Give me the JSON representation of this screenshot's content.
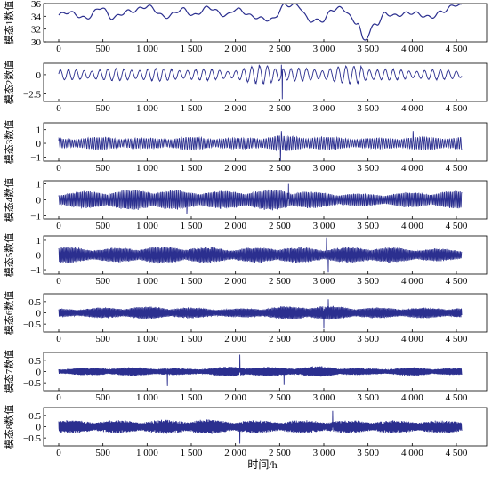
{
  "chart_data": {
    "type": "line",
    "xlabel": "时间/h",
    "x_range": [
      0,
      4600
    ],
    "x_ticks": [
      0,
      500,
      1000,
      1500,
      2000,
      2500,
      3000,
      3500,
      4000,
      4500
    ],
    "x_tick_labels": [
      "0",
      "500",
      "1 000",
      "1 500",
      "2 000",
      "2 500",
      "3 000",
      "3 500",
      "4 000",
      "4 500"
    ],
    "line_color": "#2b2f8f",
    "panels": [
      {
        "ylabel": "模态1数值",
        "ylim": [
          30,
          36
        ],
        "y_ticks": [
          30,
          32,
          34,
          36
        ],
        "y_tick_labels": [
          "30",
          "32",
          "34",
          "36"
        ],
        "approx_series": {
          "x": [
            0,
            100,
            300,
            480,
            600,
            800,
            1000,
            1200,
            1400,
            1530,
            1700,
            1900,
            2000,
            2200,
            2420,
            2560,
            2700,
            2850,
            2990,
            3100,
            3200,
            3380,
            3450,
            3600,
            3700,
            3800,
            4000,
            4200,
            4350,
            4500,
            4560
          ],
          "y": [
            34.2,
            34.5,
            33.8,
            35.4,
            33.6,
            34.9,
            35.5,
            33.9,
            35.2,
            34.0,
            35.4,
            34.2,
            35.0,
            34.0,
            33.5,
            35.6,
            35.8,
            33.4,
            33.2,
            35.0,
            35.4,
            33.0,
            30.2,
            32.8,
            34.6,
            34.2,
            34.4,
            34.0,
            34.8,
            35.7,
            35.6
          ]
        },
        "noise": 0.0,
        "freq": 0.0
      },
      {
        "ylabel": "模态2数值",
        "ylim": [
          -3.5,
          1.5
        ],
        "y_ticks": [
          0,
          -2.5
        ],
        "y_tick_labels": [
          "0",
          "−2.5"
        ],
        "amp_segments": [
          [
            0,
            0.7
          ],
          [
            500,
            0.8
          ],
          [
            1000,
            0.9
          ],
          [
            1500,
            0.8
          ],
          [
            2000,
            0.7
          ],
          [
            2400,
            1.6
          ],
          [
            2560,
            0.9
          ],
          [
            3000,
            0.9
          ],
          [
            3400,
            1.4
          ],
          [
            3600,
            0.8
          ],
          [
            4000,
            0.7
          ],
          [
            4600,
            0.7
          ]
        ],
        "spikes": [
          [
            2530,
            -3.2
          ],
          [
            2520,
            1.3
          ],
          [
            3420,
            1.2
          ]
        ],
        "freq": 0.07
      },
      {
        "ylabel": "模态3数值",
        "ylim": [
          -1.3,
          1.5
        ],
        "y_ticks": [
          -1,
          0,
          1
        ],
        "y_tick_labels": [
          "−1",
          "0",
          "1"
        ],
        "amp_segments": [
          [
            0,
            0.4
          ],
          [
            500,
            0.5
          ],
          [
            1000,
            0.4
          ],
          [
            1500,
            0.5
          ],
          [
            2000,
            0.4
          ],
          [
            2500,
            0.6
          ],
          [
            3000,
            0.5
          ],
          [
            3500,
            0.4
          ],
          [
            4000,
            0.5
          ],
          [
            4600,
            0.5
          ]
        ],
        "spikes": [
          [
            2510,
            -1.3
          ],
          [
            4010,
            0.9
          ],
          [
            2520,
            0.9
          ]
        ],
        "freq": 0.25
      },
      {
        "ylabel": "模态4数值",
        "ylim": [
          -1.2,
          1.2
        ],
        "y_ticks": [
          -1,
          0,
          1
        ],
        "y_tick_labels": [
          "−1",
          "0",
          "1"
        ],
        "amp_segments": [
          [
            0,
            0.5
          ],
          [
            500,
            0.6
          ],
          [
            1000,
            0.7
          ],
          [
            1500,
            0.6
          ],
          [
            2000,
            0.6
          ],
          [
            2500,
            0.7
          ],
          [
            3000,
            0.5
          ],
          [
            3500,
            0.4
          ],
          [
            4000,
            0.5
          ],
          [
            4600,
            0.6
          ]
        ],
        "spikes": [
          [
            1450,
            -0.9
          ],
          [
            2600,
            1.0
          ]
        ],
        "freq": 0.35
      },
      {
        "ylabel": "模态5数值",
        "ylim": [
          -1.3,
          1.3
        ],
        "y_ticks": [
          -1,
          0,
          1
        ],
        "y_tick_labels": [
          "−1",
          "0",
          "1"
        ],
        "amp_segments": [
          [
            0,
            0.6
          ],
          [
            500,
            0.5
          ],
          [
            1000,
            0.6
          ],
          [
            1500,
            0.6
          ],
          [
            2000,
            0.5
          ],
          [
            2500,
            0.6
          ],
          [
            3000,
            0.5
          ],
          [
            3500,
            0.6
          ],
          [
            4000,
            0.5
          ],
          [
            4600,
            0.4
          ]
        ],
        "spikes": [
          [
            3050,
            -1.2
          ],
          [
            3030,
            1.2
          ]
        ],
        "freq": 0.45
      },
      {
        "ylabel": "模态6数值",
        "ylim": [
          -0.85,
          0.85
        ],
        "y_ticks": [
          -0.5,
          0,
          0.5
        ],
        "y_tick_labels": [
          "−0.5",
          "0",
          "0.5"
        ],
        "amp_segments": [
          [
            0,
            0.2
          ],
          [
            500,
            0.25
          ],
          [
            1000,
            0.3
          ],
          [
            1500,
            0.25
          ],
          [
            2000,
            0.2
          ],
          [
            2500,
            0.3
          ],
          [
            3000,
            0.35
          ],
          [
            3500,
            0.25
          ],
          [
            4000,
            0.25
          ],
          [
            4600,
            0.25
          ]
        ],
        "spikes": [
          [
            3000,
            -0.7
          ],
          [
            3050,
            0.6
          ]
        ],
        "freq": 0.5
      },
      {
        "ylabel": "模态7数值",
        "ylim": [
          -0.85,
          0.85
        ],
        "y_ticks": [
          -0.5,
          0,
          0.5
        ],
        "y_tick_labels": [
          "−0.5",
          "0",
          "0.5"
        ],
        "amp_segments": [
          [
            0,
            0.15
          ],
          [
            500,
            0.2
          ],
          [
            1000,
            0.2
          ],
          [
            1500,
            0.15
          ],
          [
            2000,
            0.25
          ],
          [
            2500,
            0.2
          ],
          [
            3000,
            0.25
          ],
          [
            3500,
            0.15
          ],
          [
            4000,
            0.2
          ],
          [
            4600,
            0.15
          ]
        ],
        "spikes": [
          [
            2050,
            0.75
          ],
          [
            1230,
            -0.65
          ],
          [
            2550,
            -0.6
          ]
        ],
        "freq": 0.6
      },
      {
        "ylabel": "模态8数值",
        "ylim": [
          -0.85,
          0.85
        ],
        "y_ticks": [
          -0.5,
          0,
          0.5
        ],
        "y_tick_labels": [
          "−0.5",
          "0",
          "0.5"
        ],
        "amp_segments": [
          [
            0,
            0.3
          ],
          [
            500,
            0.3
          ],
          [
            1000,
            0.3
          ],
          [
            1500,
            0.35
          ],
          [
            2000,
            0.3
          ],
          [
            2500,
            0.3
          ],
          [
            3000,
            0.3
          ],
          [
            3500,
            0.3
          ],
          [
            4000,
            0.3
          ],
          [
            4600,
            0.3
          ]
        ],
        "spikes": [
          [
            2050,
            -0.75
          ],
          [
            3100,
            0.7
          ]
        ],
        "freq": 0.7
      }
    ]
  }
}
